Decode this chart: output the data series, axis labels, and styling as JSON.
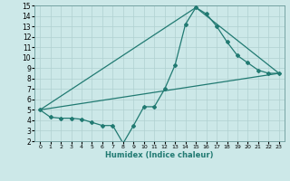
{
  "title": "",
  "xlabel": "Humidex (Indice chaleur)",
  "xlim": [
    -0.5,
    23.5
  ],
  "ylim": [
    2,
    15
  ],
  "xticks": [
    0,
    1,
    2,
    3,
    4,
    5,
    6,
    7,
    8,
    9,
    10,
    11,
    12,
    13,
    14,
    15,
    16,
    17,
    18,
    19,
    20,
    21,
    22,
    23
  ],
  "yticks": [
    2,
    3,
    4,
    5,
    6,
    7,
    8,
    9,
    10,
    11,
    12,
    13,
    14,
    15
  ],
  "bg_color": "#cce8e8",
  "line_color": "#217a72",
  "grid_color": "#b0d0d0",
  "line1_x": [
    0,
    1,
    2,
    3,
    4,
    5,
    6,
    7,
    8,
    9,
    10,
    11,
    12,
    13,
    14,
    15,
    16,
    17,
    18,
    19,
    20,
    21,
    22,
    23
  ],
  "line1_y": [
    5.0,
    4.3,
    4.2,
    4.2,
    4.1,
    3.8,
    3.5,
    3.5,
    1.8,
    3.5,
    5.3,
    5.3,
    7.0,
    9.3,
    13.2,
    14.8,
    14.2,
    13.0,
    11.5,
    10.2,
    9.5,
    8.8,
    8.5,
    8.5
  ],
  "line2_x": [
    0,
    23
  ],
  "line2_y": [
    5.0,
    8.5
  ],
  "line3_x": [
    0,
    15,
    23
  ],
  "line3_y": [
    5.0,
    14.8,
    8.5
  ],
  "markersize": 2.0,
  "linewidth": 0.9
}
